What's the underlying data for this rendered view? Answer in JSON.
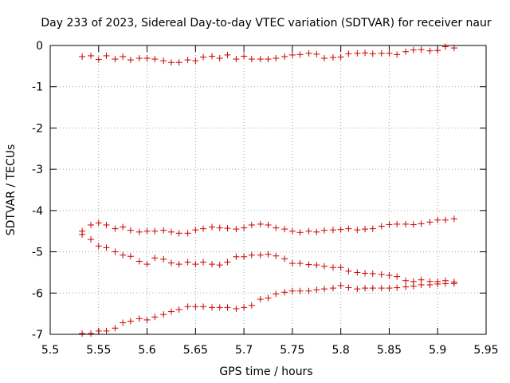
{
  "chart_data": {
    "type": "scatter",
    "title": "Day 233 of 2023, Sidereal Day-to-day VTEC variation (SDTVAR) for receiver naur",
    "xlabel": "GPS time / hours",
    "ylabel": "SDTVAR / TECUs",
    "xlim": [
      5.5,
      5.95
    ],
    "ylim": [
      -7,
      0
    ],
    "xticks": [
      "5.5",
      "5.55",
      "5.6",
      "5.65",
      "5.7",
      "5.75",
      "5.8",
      "5.85",
      "5.9",
      "5.95"
    ],
    "yticks": [
      "0",
      "-1",
      "-2",
      "-3",
      "-4",
      "-5",
      "-6",
      "-7"
    ],
    "grid": true,
    "marker": "+",
    "color": "#cc0000",
    "series": [
      {
        "name": "group-1",
        "x": [
          5.533,
          5.542,
          5.55,
          5.558,
          5.567,
          5.575,
          5.583,
          5.592,
          5.6,
          5.608,
          5.617,
          5.625,
          5.633,
          5.642,
          5.65,
          5.658,
          5.667,
          5.675,
          5.683,
          5.692,
          5.7,
          5.708,
          5.717,
          5.725,
          5.733,
          5.742,
          5.75,
          5.758,
          5.767,
          5.775,
          5.783,
          5.792,
          5.8,
          5.808,
          5.817,
          5.825,
          5.833,
          5.842,
          5.85,
          5.858,
          5.867,
          5.875,
          5.883,
          5.892,
          5.9,
          5.908,
          5.917
        ],
        "y": [
          -0.27,
          -0.25,
          -0.34,
          -0.25,
          -0.33,
          -0.27,
          -0.35,
          -0.31,
          -0.31,
          -0.33,
          -0.37,
          -0.41,
          -0.41,
          -0.35,
          -0.37,
          -0.28,
          -0.26,
          -0.31,
          -0.23,
          -0.33,
          -0.26,
          -0.33,
          -0.33,
          -0.33,
          -0.31,
          -0.27,
          -0.23,
          -0.22,
          -0.19,
          -0.21,
          -0.31,
          -0.29,
          -0.28,
          -0.2,
          -0.19,
          -0.18,
          -0.2,
          -0.19,
          -0.19,
          -0.22,
          -0.15,
          -0.11,
          -0.1,
          -0.13,
          -0.12,
          -0.03,
          -0.06
        ]
      },
      {
        "name": "group-2",
        "x": [
          5.533,
          5.542,
          5.55,
          5.558,
          5.567,
          5.575,
          5.583,
          5.592,
          5.6,
          5.608,
          5.617,
          5.625,
          5.633,
          5.642,
          5.65,
          5.658,
          5.667,
          5.675,
          5.683,
          5.692,
          5.7,
          5.708,
          5.717,
          5.725,
          5.733,
          5.742,
          5.75,
          5.758,
          5.767,
          5.775,
          5.783,
          5.792,
          5.8,
          5.808,
          5.817,
          5.825,
          5.833,
          5.842,
          5.85,
          5.858,
          5.867,
          5.875,
          5.883,
          5.892,
          5.9,
          5.908,
          5.917
        ],
        "y": [
          -4.5,
          -4.35,
          -4.3,
          -4.35,
          -4.44,
          -4.4,
          -4.48,
          -4.52,
          -4.5,
          -4.5,
          -4.48,
          -4.52,
          -4.55,
          -4.55,
          -4.47,
          -4.44,
          -4.4,
          -4.42,
          -4.43,
          -4.45,
          -4.42,
          -4.35,
          -4.33,
          -4.35,
          -4.42,
          -4.45,
          -4.5,
          -4.53,
          -4.5,
          -4.52,
          -4.48,
          -4.47,
          -4.46,
          -4.44,
          -4.47,
          -4.45,
          -4.44,
          -4.38,
          -4.34,
          -4.33,
          -4.33,
          -4.34,
          -4.32,
          -4.28,
          -4.23,
          -4.23,
          -4.2
        ]
      },
      {
        "name": "group-3",
        "x": [
          5.533,
          5.542,
          5.55,
          5.558,
          5.567,
          5.575,
          5.583,
          5.592,
          5.6,
          5.608,
          5.617,
          5.625,
          5.633,
          5.642,
          5.65,
          5.658,
          5.667,
          5.675,
          5.683,
          5.692,
          5.7,
          5.708,
          5.717,
          5.725,
          5.733,
          5.742,
          5.75,
          5.758,
          5.767,
          5.775,
          5.783,
          5.792,
          5.8,
          5.808,
          5.817,
          5.825,
          5.833,
          5.842,
          5.85,
          5.858,
          5.867,
          5.875,
          5.883,
          5.892,
          5.9,
          5.908,
          5.917
        ],
        "y": [
          -4.58,
          -4.7,
          -4.86,
          -4.9,
          -5.0,
          -5.08,
          -5.11,
          -5.23,
          -5.3,
          -5.15,
          -5.18,
          -5.27,
          -5.3,
          -5.25,
          -5.3,
          -5.25,
          -5.3,
          -5.32,
          -5.25,
          -5.12,
          -5.12,
          -5.08,
          -5.08,
          -5.06,
          -5.1,
          -5.17,
          -5.28,
          -5.28,
          -5.31,
          -5.32,
          -5.35,
          -5.38,
          -5.38,
          -5.47,
          -5.5,
          -5.52,
          -5.53,
          -5.55,
          -5.57,
          -5.6,
          -5.7,
          -5.72,
          -5.68,
          -5.72,
          -5.72,
          -5.7,
          -5.73
        ]
      },
      {
        "name": "group-4",
        "x": [
          5.533,
          5.542,
          5.55,
          5.558,
          5.567,
          5.575,
          5.583,
          5.592,
          5.6,
          5.608,
          5.617,
          5.625,
          5.633,
          5.642,
          5.65,
          5.658,
          5.667,
          5.675,
          5.683,
          5.692,
          5.7,
          5.708,
          5.717,
          5.725,
          5.733,
          5.742,
          5.75,
          5.758,
          5.767,
          5.775,
          5.783,
          5.792,
          5.8,
          5.808,
          5.817,
          5.825,
          5.833,
          5.842,
          5.85,
          5.858,
          5.867,
          5.875,
          5.883,
          5.892,
          5.9,
          5.908,
          5.917
        ],
        "y": [
          -6.98,
          -6.98,
          -6.92,
          -6.92,
          -6.85,
          -6.72,
          -6.68,
          -6.62,
          -6.65,
          -6.58,
          -6.52,
          -6.45,
          -6.4,
          -6.33,
          -6.33,
          -6.33,
          -6.35,
          -6.35,
          -6.35,
          -6.38,
          -6.35,
          -6.3,
          -6.15,
          -6.12,
          -6.02,
          -5.98,
          -5.95,
          -5.95,
          -5.95,
          -5.92,
          -5.9,
          -5.88,
          -5.82,
          -5.87,
          -5.9,
          -5.88,
          -5.88,
          -5.88,
          -5.88,
          -5.87,
          -5.85,
          -5.83,
          -5.8,
          -5.8,
          -5.78,
          -5.77,
          -5.77
        ]
      }
    ]
  }
}
